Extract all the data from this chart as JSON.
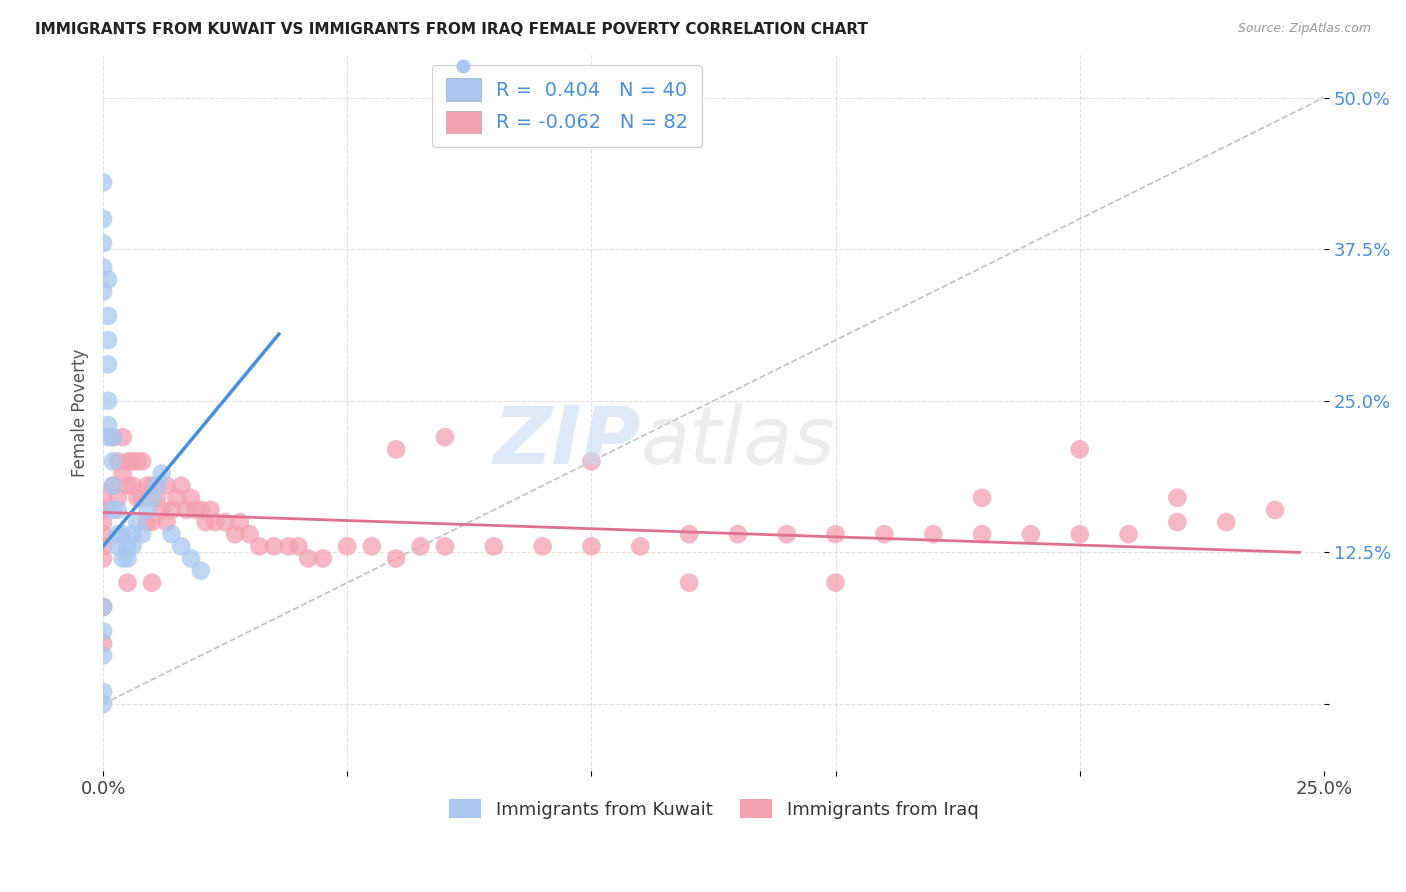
{
  "title": "IMMIGRANTS FROM KUWAIT VS IMMIGRANTS FROM IRAQ FEMALE POVERTY CORRELATION CHART",
  "source": "Source: ZipAtlas.com",
  "ylabel": "Female Poverty",
  "kuwait_color": "#a8c8f0",
  "iraq_color": "#f4a0b0",
  "kuwait_R": 0.404,
  "kuwait_N": 40,
  "iraq_R": -0.062,
  "iraq_N": 82,
  "legend_label_kuwait": "Immigrants from Kuwait",
  "legend_label_iraq": "Immigrants from Iraq",
  "kuwait_line_color": "#4a90d9",
  "iraq_line_color": "#e07090",
  "diag_line_color": "#bbbbbb",
  "x_range": [
    0.0,
    0.25
  ],
  "y_range": [
    -0.055,
    0.535
  ],
  "y_ticks": [
    0.0,
    0.125,
    0.25,
    0.375,
    0.5
  ],
  "y_tick_labels": [
    "",
    "12.5%",
    "25.0%",
    "37.5%",
    "50.0%"
  ],
  "kuwait_line_x0": 0.0,
  "kuwait_line_y0": 0.13,
  "kuwait_line_x1": 0.036,
  "kuwait_line_y1": 0.305,
  "iraq_line_x0": 0.0,
  "iraq_line_y0": 0.158,
  "iraq_line_x1": 0.245,
  "iraq_line_y1": 0.125,
  "kuwait_x": [
    0.0,
    0.0,
    0.0,
    0.0,
    0.0,
    0.0,
    0.0,
    0.0,
    0.0,
    0.0,
    0.001,
    0.001,
    0.001,
    0.001,
    0.001,
    0.001,
    0.001,
    0.002,
    0.002,
    0.002,
    0.002,
    0.003,
    0.003,
    0.003,
    0.004,
    0.004,
    0.005,
    0.005,
    0.006,
    0.006,
    0.007,
    0.008,
    0.009,
    0.01,
    0.011,
    0.012,
    0.014,
    0.016,
    0.018,
    0.02
  ],
  "kuwait_y": [
    0.43,
    0.4,
    0.38,
    0.36,
    0.34,
    0.08,
    0.06,
    0.04,
    0.01,
    0.0,
    0.35,
    0.32,
    0.3,
    0.28,
    0.25,
    0.23,
    0.22,
    0.22,
    0.2,
    0.18,
    0.16,
    0.16,
    0.14,
    0.13,
    0.14,
    0.12,
    0.13,
    0.12,
    0.14,
    0.13,
    0.15,
    0.14,
    0.16,
    0.17,
    0.18,
    0.19,
    0.14,
    0.13,
    0.12,
    0.11
  ],
  "iraq_x": [
    0.0,
    0.0,
    0.0,
    0.0,
    0.0,
    0.0,
    0.0,
    0.0,
    0.002,
    0.002,
    0.003,
    0.003,
    0.004,
    0.004,
    0.005,
    0.005,
    0.006,
    0.006,
    0.007,
    0.007,
    0.008,
    0.008,
    0.009,
    0.009,
    0.01,
    0.01,
    0.011,
    0.012,
    0.013,
    0.013,
    0.014,
    0.015,
    0.016,
    0.017,
    0.018,
    0.019,
    0.02,
    0.021,
    0.022,
    0.023,
    0.025,
    0.027,
    0.028,
    0.03,
    0.032,
    0.035,
    0.038,
    0.04,
    0.042,
    0.045,
    0.05,
    0.055,
    0.06,
    0.065,
    0.07,
    0.08,
    0.09,
    0.1,
    0.11,
    0.12,
    0.13,
    0.14,
    0.15,
    0.16,
    0.17,
    0.18,
    0.19,
    0.2,
    0.21,
    0.22,
    0.23,
    0.24,
    0.06,
    0.07,
    0.1,
    0.12,
    0.15,
    0.18,
    0.2,
    0.22,
    0.005,
    0.01
  ],
  "iraq_y": [
    0.17,
    0.16,
    0.15,
    0.14,
    0.13,
    0.12,
    0.08,
    0.05,
    0.22,
    0.18,
    0.2,
    0.17,
    0.22,
    0.19,
    0.2,
    0.18,
    0.2,
    0.18,
    0.2,
    0.17,
    0.2,
    0.17,
    0.18,
    0.15,
    0.18,
    0.15,
    0.17,
    0.16,
    0.18,
    0.15,
    0.16,
    0.17,
    0.18,
    0.16,
    0.17,
    0.16,
    0.16,
    0.15,
    0.16,
    0.15,
    0.15,
    0.14,
    0.15,
    0.14,
    0.13,
    0.13,
    0.13,
    0.13,
    0.12,
    0.12,
    0.13,
    0.13,
    0.12,
    0.13,
    0.13,
    0.13,
    0.13,
    0.13,
    0.13,
    0.14,
    0.14,
    0.14,
    0.14,
    0.14,
    0.14,
    0.14,
    0.14,
    0.14,
    0.14,
    0.15,
    0.15,
    0.16,
    0.21,
    0.22,
    0.2,
    0.1,
    0.1,
    0.17,
    0.21,
    0.17,
    0.1,
    0.1
  ]
}
